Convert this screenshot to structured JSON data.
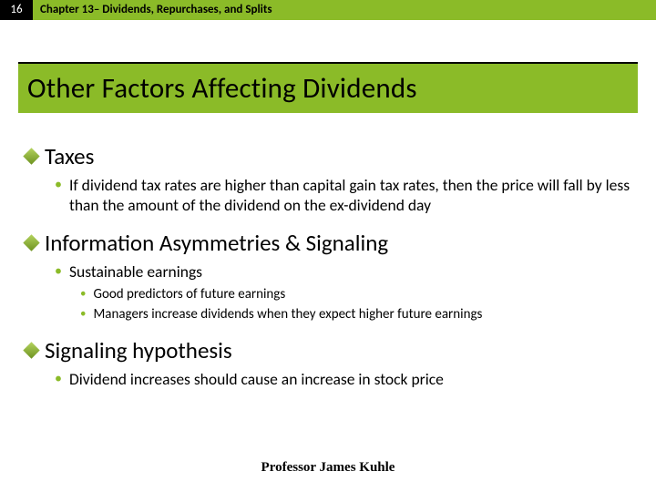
{
  "header": {
    "page_number": "16",
    "chapter": "Chapter 13– Dividends, Repurchases, and Splits"
  },
  "title": "Other Factors Affecting Dividends",
  "sections": [
    {
      "heading": "Taxes",
      "bullets": [
        {
          "text": "If dividend tax rates are higher than capital gain tax rates, then the price will fall by less than the amount of the dividend on the ex-dividend day",
          "sub": []
        }
      ]
    },
    {
      "heading": "Information Asymmetries & Signaling",
      "bullets": [
        {
          "text": "Sustainable earnings",
          "sub": [
            "Good predictors of future earnings",
            "Managers increase dividends when they expect higher future earnings"
          ]
        }
      ]
    },
    {
      "heading": "Signaling hypothesis",
      "bullets": [
        {
          "text": "Dividend increases should cause an increase in stock price",
          "sub": []
        }
      ]
    }
  ],
  "footer": "Professor James Kuhle",
  "colors": {
    "accent": "#8bbb28",
    "black": "#000000",
    "white": "#ffffff"
  },
  "typography": {
    "title_fontsize": 31,
    "h1_fontsize": 25,
    "h2_fontsize": 17.5,
    "h3_fontsize": 15,
    "header_fontsize": 13,
    "footer_fontsize": 15
  }
}
